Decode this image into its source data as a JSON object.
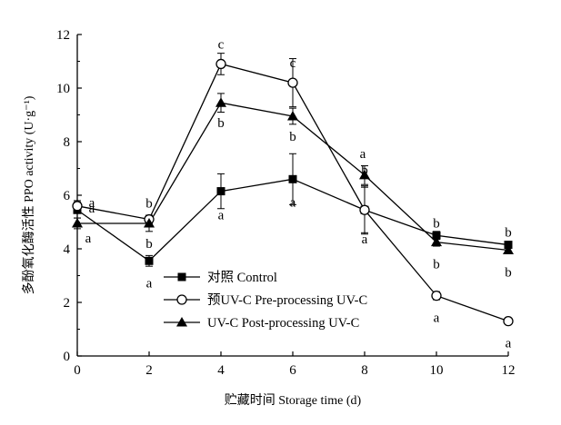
{
  "chart_data": {
    "type": "line",
    "xlabel": "贮藏时间 Storage time (d)",
    "ylabel": "多酚氧化酶活性 PPO activity (U·g⁻¹)",
    "x": [
      0,
      2,
      4,
      6,
      8,
      10,
      12
    ],
    "xlim": [
      0,
      12
    ],
    "ylim": [
      0,
      12
    ],
    "xticks": [
      "0",
      "2",
      "4",
      "6",
      "8",
      "10",
      "12"
    ],
    "yticks": [
      "0",
      "2",
      "4",
      "6",
      "8",
      "10",
      "12"
    ],
    "grid": false,
    "legend_position": "bottom-left",
    "series": [
      {
        "name": "对照 Control",
        "marker": "filled-square",
        "values": [
          5.45,
          3.55,
          6.15,
          6.6,
          5.45,
          4.5,
          4.15
        ],
        "errors": [
          0.3,
          0.2,
          0.65,
          0.95,
          0.85,
          0.15,
          0.12
        ],
        "sig_labels": [
          "a",
          "a",
          "a",
          "a",
          "a",
          "b",
          "b"
        ]
      },
      {
        "name": "预UV-C Pre-processing UV-C",
        "marker": "open-circle",
        "values": [
          5.6,
          5.1,
          10.9,
          10.2,
          5.45,
          2.25,
          1.3
        ],
        "errors": [
          0.2,
          0.15,
          0.4,
          0.9,
          0.9,
          0.15,
          0.07
        ],
        "sig_labels": [
          "a",
          "b",
          "c",
          "c",
          "b",
          "a",
          "a"
        ]
      },
      {
        "name": "UV-C   Post-processing UV-C",
        "marker": "filled-triangle",
        "values": [
          4.95,
          4.95,
          9.45,
          8.95,
          6.75,
          4.25,
          3.95
        ],
        "errors": [
          0.2,
          0.3,
          0.35,
          0.3,
          0.35,
          0.15,
          0.1
        ],
        "sig_labels": [
          "a",
          "b",
          "b",
          "b",
          "a",
          "b",
          "b"
        ]
      }
    ]
  }
}
